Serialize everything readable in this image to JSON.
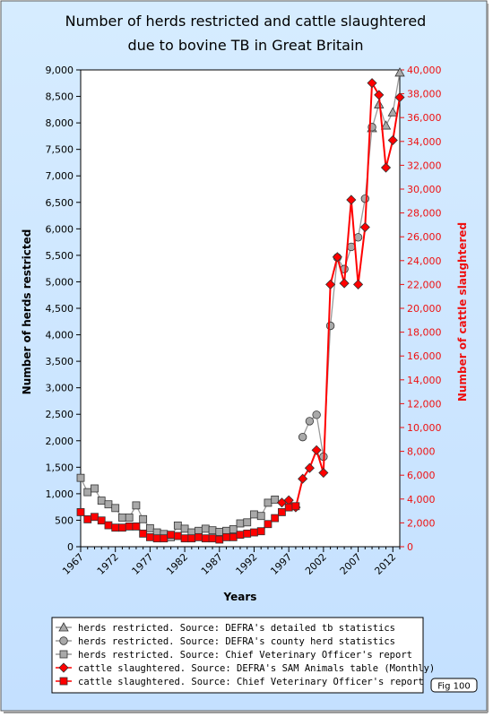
{
  "chart_data": {
    "type": "line",
    "title_lines": [
      "Number of herds restricted and cattle slaughtered",
      "due to bovine TB in Great Britain"
    ],
    "xlabel": "Years",
    "ylabel_left": "Number of herds restricted",
    "ylabel_right": "Number of cattle slaughtered",
    "xlim": [
      1967,
      2013
    ],
    "ylim_left": [
      0,
      9000
    ],
    "ylim_right": [
      0,
      40000
    ],
    "x_ticks": [
      1967,
      1972,
      1977,
      1982,
      1987,
      1992,
      1997,
      2002,
      2007,
      2012
    ],
    "x_tick_labels": [
      "1967",
      "1972",
      "1977",
      "1982",
      "1987",
      "1992",
      "1997",
      "2002",
      "2007",
      "2012"
    ],
    "y_left_tick_labels": [
      "0",
      "500",
      "1,000",
      "1,500",
      "2,000",
      "2,500",
      "3,000",
      "3,500",
      "4,000",
      "4,500",
      "5,000",
      "5,500",
      "6,000",
      "6,500",
      "7,000",
      "7,500",
      "8,000",
      "8,500",
      "9,000"
    ],
    "y_right_tick_labels": [
      "0",
      "2,000",
      "4,000",
      "6,000",
      "8,000",
      "10,000",
      "12,000",
      "14,000",
      "16,000",
      "18,000",
      "20,000",
      "22,000",
      "24,000",
      "26,000",
      "28,000",
      "30,000",
      "32,000",
      "34,000",
      "36,000",
      "38,000",
      "40,000"
    ],
    "grid": false,
    "legend_position": "bottom",
    "colors": {
      "grey_marker": "#a9a9a9",
      "red": "#ff0000",
      "right_axis_text": "#ee1111",
      "background": "#cce6ff"
    },
    "series": [
      {
        "name": "herds restricted. Source: DEFRA's detailed tb statistics",
        "axis": "left",
        "marker": "triangle",
        "color": "#a9a9a9",
        "x": [
          2009,
          2010,
          2011,
          2012,
          2013
        ],
        "y": [
          7900,
          8350,
          7950,
          8200,
          8950
        ]
      },
      {
        "name": "herds restricted. Source: DEFRA's county herd statistics",
        "axis": "left",
        "marker": "circle",
        "color": "#a9a9a9",
        "x": [
          1999,
          2000,
          2001,
          2002,
          2003,
          2004,
          2005,
          2006,
          2007,
          2008,
          2009
        ],
        "y": [
          2070,
          2370,
          2490,
          1700,
          4170,
          5460,
          5240,
          5660,
          5840,
          6570,
          7920
        ]
      },
      {
        "name": "herds restricted. Source: Chief Veterinary Officer's report",
        "axis": "left",
        "marker": "square",
        "color": "#a9a9a9",
        "x": [
          1967,
          1968,
          1969,
          1970,
          1971,
          1972,
          1973,
          1974,
          1975,
          1976,
          1977,
          1978,
          1979,
          1980,
          1981,
          1982,
          1983,
          1984,
          1985,
          1986,
          1987,
          1988,
          1989,
          1990,
          1991,
          1992,
          1993,
          1994,
          1995
        ],
        "y": [
          1300,
          1030,
          1100,
          870,
          800,
          730,
          550,
          550,
          780,
          520,
          350,
          270,
          240,
          180,
          400,
          340,
          270,
          300,
          340,
          310,
          280,
          300,
          330,
          440,
          460,
          610,
          580,
          830,
          890
        ]
      },
      {
        "name": "cattle slaughtered. Source: DEFRA's SAM Animals table (Monthly)",
        "axis": "right",
        "marker": "diamond",
        "color": "#ff0000",
        "x": [
          1996,
          1997,
          1998,
          1999,
          2000,
          2001,
          2002,
          2003,
          2004,
          2005,
          2006,
          2007,
          2008,
          2009,
          2010,
          2011,
          2012,
          2013
        ],
        "y": [
          3700,
          3900,
          3300,
          5700,
          6600,
          8100,
          6200,
          22000,
          24300,
          22100,
          29100,
          22000,
          26800,
          38900,
          37900,
          31800,
          34100,
          37700
        ]
      },
      {
        "name": "cattle slaughtered. Source: Chief Veterinary Officer's report",
        "axis": "right",
        "marker": "square",
        "color": "#ff0000",
        "x": [
          1967,
          1968,
          1969,
          1970,
          1971,
          1972,
          1973,
          1974,
          1975,
          1976,
          1977,
          1978,
          1979,
          1980,
          1981,
          1982,
          1983,
          1984,
          1985,
          1986,
          1987,
          1988,
          1989,
          1990,
          1991,
          1992,
          1993,
          1994,
          1995,
          1996,
          1997,
          1998
        ],
        "y": [
          2900,
          2300,
          2500,
          2200,
          1800,
          1600,
          1600,
          1700,
          1700,
          1100,
          800,
          700,
          700,
          1000,
          900,
          700,
          700,
          800,
          700,
          700,
          600,
          800,
          800,
          1000,
          1100,
          1200,
          1300,
          1900,
          2400,
          2900,
          3300,
          3400
        ]
      }
    ]
  },
  "fig_label": "Fig 100"
}
